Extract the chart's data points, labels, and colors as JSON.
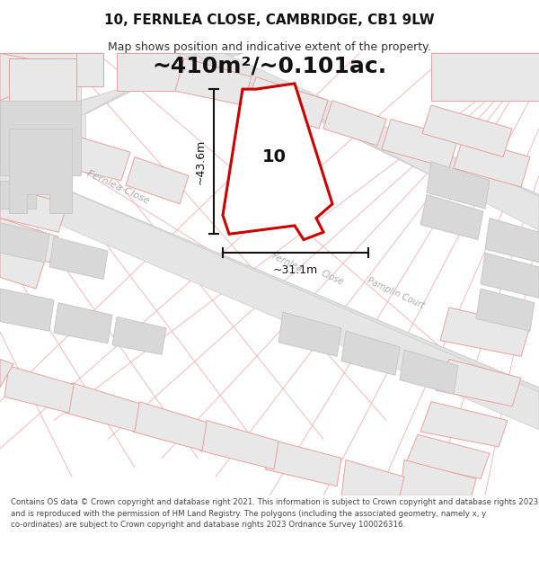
{
  "title_line1": "10, FERNLEA CLOSE, CAMBRIDGE, CB1 9LW",
  "title_line2": "Map shows position and indicative extent of the property.",
  "area_text": "~410m²/~0.101ac.",
  "dim_vertical": "~43.6m",
  "dim_horizontal": "~31.1m",
  "label_number": "10",
  "footer_text": "Contains OS data © Crown copyright and database right 2021. This information is subject to Crown copyright and database rights 2023 and is reproduced with the permission of HM Land Registry. The polygons (including the associated geometry, namely x, y co-ordinates) are subject to Crown copyright and database rights 2023 Ordnance Survey 100026316.",
  "bg_color": "#ffffff",
  "map_bg": "#ffffff",
  "road_fill": "#e8e8e8",
  "bld_fill": "#e8e8e8",
  "bld_stroke": "#e8a0a0",
  "bld_stroke2": "#c8c8c8",
  "prop_fill": "#ffffff",
  "prop_stroke": "#cc0000",
  "dim_color": "#111111",
  "street_color": "#aaaaaa",
  "title_fs": 11,
  "subtitle_fs": 9,
  "area_fs": 18,
  "dim_fs": 9,
  "label_fs": 14,
  "street_fs": 8,
  "footer_fs": 6.2
}
